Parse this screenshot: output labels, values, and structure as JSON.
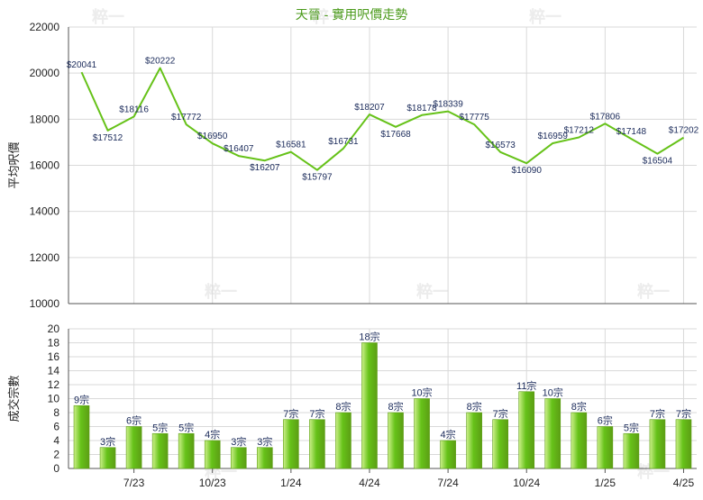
{
  "title": "天晉 - 實用呎價走勢",
  "watermark": "粹一",
  "colors": {
    "title": "#4a9a1a",
    "line": "#66c219",
    "bar_light": "#cdf08a",
    "bar_dark": "#5c9e14",
    "grid": "#d9d9d9",
    "axis": "#555555",
    "label": "#1a2a5a"
  },
  "chart_data": [
    {
      "type": "line",
      "title": "天晉 - 實用呎價走勢",
      "ylabel": "平均呎價",
      "ylim": [
        10000,
        22000
      ],
      "yticks": [
        "10000",
        "12000",
        "14000",
        "16000",
        "18000",
        "20000",
        "22000"
      ],
      "grid": true,
      "series": [
        {
          "values": [
            20041,
            17512,
            18116,
            20222,
            17772,
            16950,
            16407,
            16207,
            16581,
            15797,
            16731,
            18207,
            17668,
            18178,
            18339,
            17775,
            16573,
            16090,
            16959,
            17212,
            17806,
            17148,
            16504,
            17202
          ],
          "labels": [
            "$20041",
            "$17512",
            "$18116",
            "$20222",
            "$17772",
            "$16950",
            "$16407",
            "$16207",
            "$16581",
            "$15797",
            "$16731",
            "$18207",
            "$17668",
            "$18178",
            "$18339",
            "$17775",
            "$16573",
            "$16090",
            "$16959",
            "$17212",
            "$17806",
            "$17148",
            "$16504",
            "$17202"
          ]
        }
      ]
    },
    {
      "type": "bar",
      "ylabel": "成交宗數",
      "ylim": [
        0,
        20
      ],
      "yticks": [
        "0",
        "2",
        "4",
        "6",
        "8",
        "10",
        "12",
        "14",
        "16",
        "18",
        "20"
      ],
      "grid": true,
      "x_tick_labels": [
        "7/23",
        "10/23",
        "1/24",
        "4/24",
        "7/24",
        "10/24",
        "1/25",
        "4/25"
      ],
      "series": [
        {
          "values": [
            9,
            3,
            6,
            5,
            5,
            4,
            3,
            3,
            7,
            7,
            8,
            18,
            8,
            10,
            4,
            8,
            7,
            11,
            10,
            8,
            6,
            5,
            7,
            7
          ],
          "labels": [
            "9宗",
            "3宗",
            "6宗",
            "5宗",
            "5宗",
            "4宗",
            "3宗",
            "3宗",
            "7宗",
            "7宗",
            "8宗",
            "18宗",
            "8宗",
            "10宗",
            "4宗",
            "8宗",
            "7宗",
            "11宗",
            "10宗",
            "8宗",
            "6宗",
            "5宗",
            "7宗",
            "7宗"
          ]
        }
      ]
    }
  ]
}
